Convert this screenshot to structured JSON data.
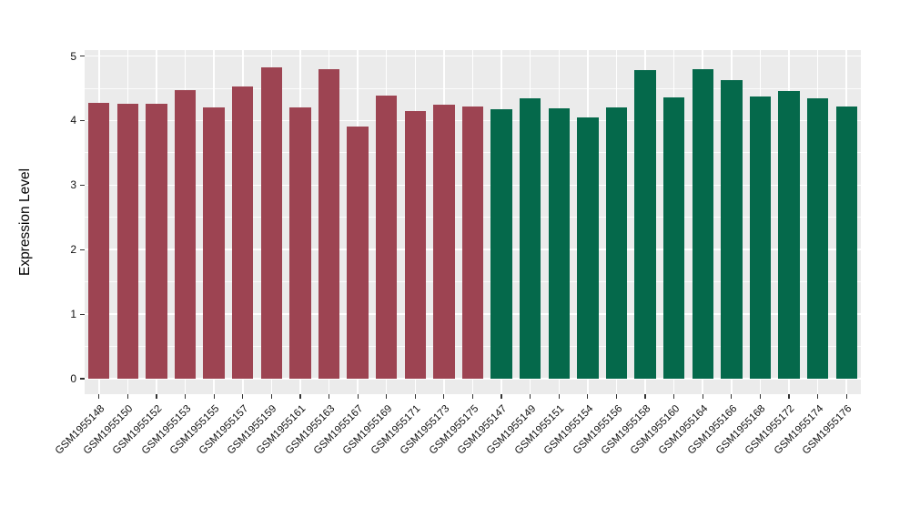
{
  "figure": {
    "title": "",
    "background": "#FFFFFF"
  },
  "chart_data": {
    "type": "bar",
    "title": "",
    "xlabel": "",
    "ylabel": "Expression Level",
    "ylim": [
      0,
      5
    ],
    "yticks": [
      0,
      1,
      2,
      3,
      4,
      5
    ],
    "ytick_labels": [
      "0",
      "1",
      "2",
      "3",
      "4",
      "5"
    ],
    "grid": "horizontal major + minor white lines and vertical white lines per category on grey panel",
    "legend_position": "none",
    "panel_bg": "#EBEBEB",
    "gridline_color": "#FFFFFF",
    "categories": [
      "GSM1955148",
      "GSM1955150",
      "GSM1955152",
      "GSM1955153",
      "GSM1955155",
      "GSM1955157",
      "GSM1955159",
      "GSM1955161",
      "GSM1955163",
      "GSM1955167",
      "GSM1955169",
      "GSM1955171",
      "GSM1955173",
      "GSM1955175",
      "GSM1955147",
      "GSM1955149",
      "GSM1955151",
      "GSM1955154",
      "GSM1955156",
      "GSM1955158",
      "GSM1955160",
      "GSM1955164",
      "GSM1955166",
      "GSM1955168",
      "GSM1955172",
      "GSM1955174",
      "GSM1955176"
    ],
    "values": [
      4.27,
      4.26,
      4.26,
      4.47,
      4.21,
      4.53,
      4.82,
      4.2,
      4.8,
      3.9,
      4.38,
      4.15,
      4.24,
      4.22,
      4.18,
      4.35,
      4.19,
      4.05,
      4.21,
      4.78,
      4.36,
      4.79,
      4.62,
      4.37,
      4.46,
      4.34,
      4.22
    ],
    "bar_groups": [
      "maroon",
      "maroon",
      "maroon",
      "maroon",
      "maroon",
      "maroon",
      "maroon",
      "maroon",
      "maroon",
      "maroon",
      "maroon",
      "maroon",
      "maroon",
      "maroon",
      "green",
      "green",
      "green",
      "green",
      "green",
      "green",
      "green",
      "green",
      "green",
      "green",
      "green",
      "green",
      "green"
    ],
    "group_colors": {
      "maroon": "#9D4452",
      "green": "#05694B"
    },
    "tick_color": "#333333",
    "axis_text_color": "#111111"
  }
}
